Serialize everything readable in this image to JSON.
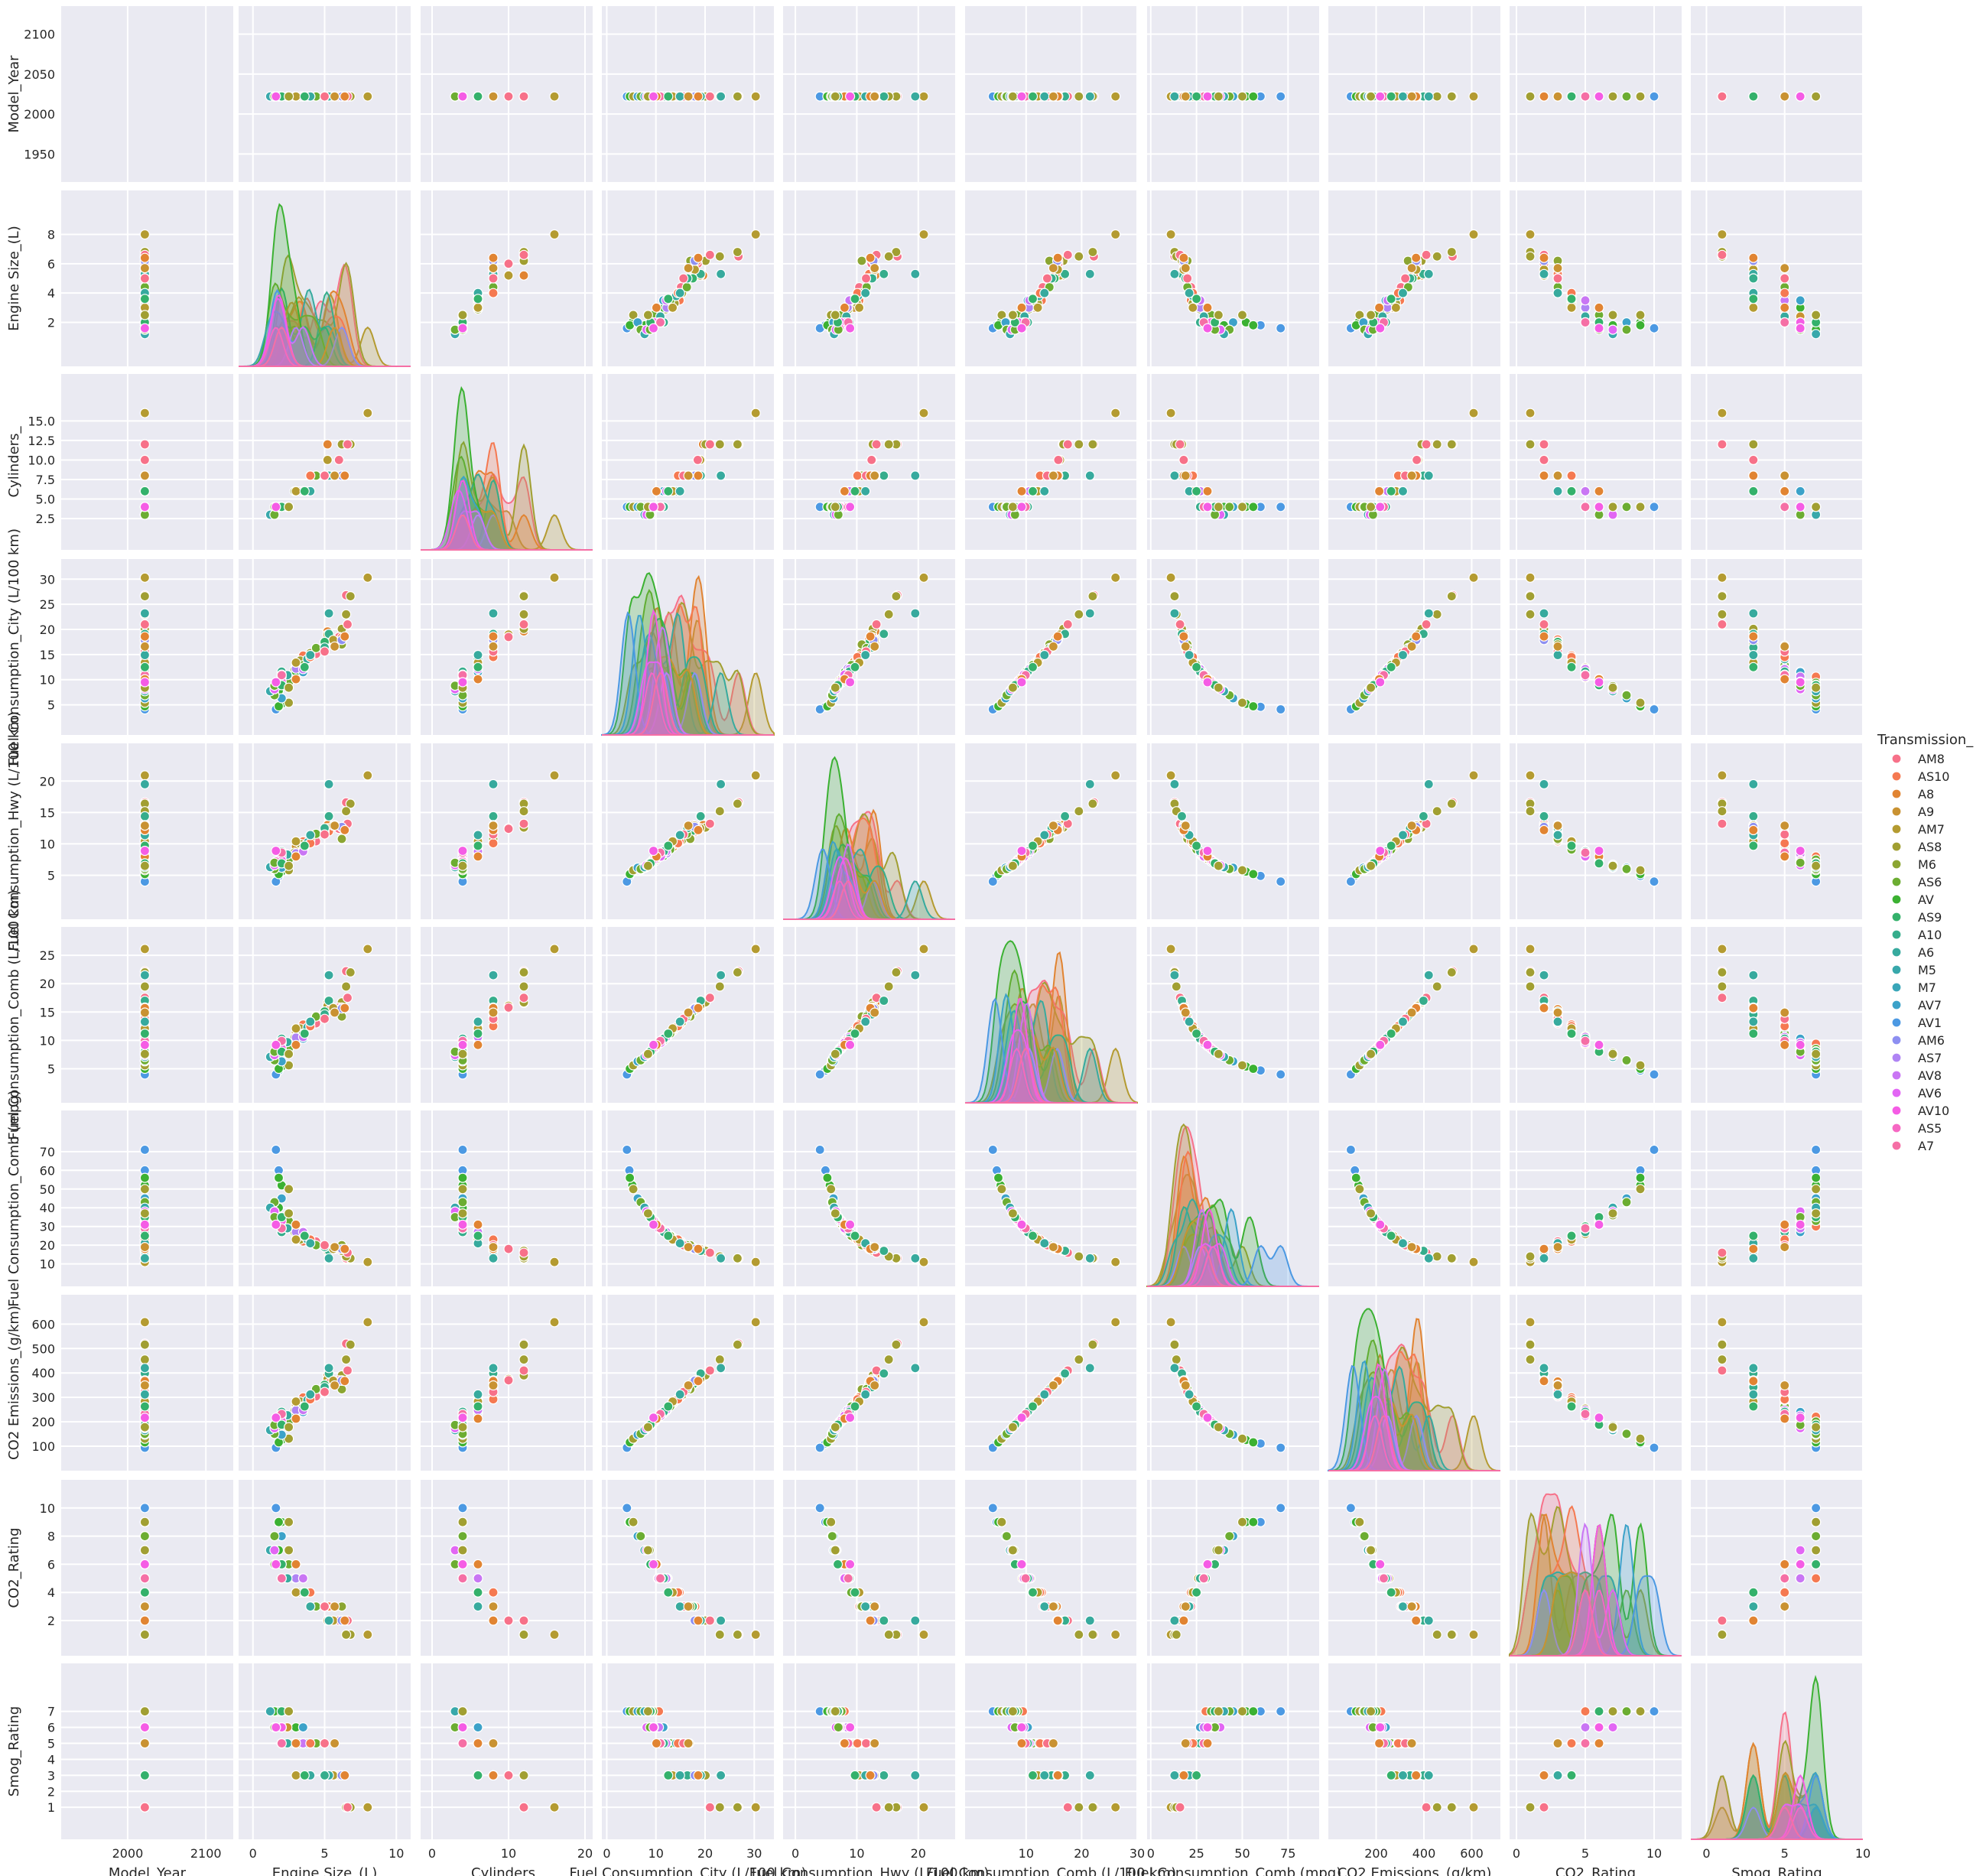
{
  "chart_data": {
    "type": "scatter",
    "variables": [
      {
        "name": "Model_Year",
        "lim": [
          1915,
          2135
        ],
        "ticks": [
          "2000",
          "2100"
        ],
        "yticks": [
          "1950",
          "2000",
          "2050",
          "2100"
        ]
      },
      {
        "name": "Engine Size_(L)",
        "lim": [
          -1,
          11
        ],
        "ticks": [
          "0",
          "5",
          "10"
        ],
        "yticks": [
          "2",
          "4",
          "6",
          "8"
        ]
      },
      {
        "name": "Cylinders_",
        "lim": [
          -1.5,
          21
        ],
        "ticks": [
          "0",
          "10",
          "20"
        ],
        "yticks": [
          "2.5",
          "5.0",
          "7.5",
          "10.0",
          "12.5",
          "15.0"
        ]
      },
      {
        "name": "Fuel Consumption_City (L/100 km)",
        "lim": [
          -1,
          34
        ],
        "ticks": [
          "0",
          "10",
          "20",
          "30"
        ],
        "yticks": [
          "5",
          "10",
          "15",
          "20",
          "25",
          "30"
        ]
      },
      {
        "name": "Fuel Consumption_Hwy (L/100 km)",
        "lim": [
          -2,
          26
        ],
        "ticks": [
          "0",
          "10",
          "20"
        ],
        "yticks": [
          "5",
          "10",
          "15",
          "20"
        ]
      },
      {
        "name": "Fuel Consumption_Comb (L/100 km)",
        "lim": [
          -1,
          30
        ],
        "ticks": [
          "10",
          "20",
          "30"
        ],
        "yticks": [
          "5",
          "10",
          "15",
          "20",
          "25"
        ]
      },
      {
        "name": "Fuel Consumption_Comb (mpg)",
        "lim": [
          -2,
          92
        ],
        "ticks": [
          "0",
          "25",
          "50",
          "75"
        ],
        "yticks": [
          "10",
          "20",
          "30",
          "40",
          "50",
          "60",
          "70"
        ]
      },
      {
        "name": "CO2 Emissions_(g/km)",
        "lim": [
          0,
          720
        ],
        "ticks": [
          "200",
          "400",
          "600"
        ],
        "yticks": [
          "100",
          "200",
          "300",
          "400",
          "500",
          "600"
        ]
      },
      {
        "name": "CO2_Rating",
        "lim": [
          -0.5,
          12
        ],
        "ticks": [
          "0",
          "5",
          "10"
        ],
        "yticks": [
          "2",
          "4",
          "6",
          "8",
          "10"
        ]
      },
      {
        "name": "Smog_Rating",
        "lim": [
          -1,
          10
        ],
        "ticks": [
          "0",
          "5",
          "10"
        ],
        "yticks": [
          "1",
          "2",
          "3",
          "4",
          "5",
          "6",
          "7"
        ]
      }
    ],
    "grid": true,
    "diagonal": "kde",
    "legend": {
      "title": "Transmission_",
      "placement": "right",
      "entries": [
        {
          "label": "AM8",
          "color": "#f77189"
        },
        {
          "label": "AS10",
          "color": "#f57951"
        },
        {
          "label": "A8",
          "color": "#e18432"
        },
        {
          "label": "A9",
          "color": "#c99232"
        },
        {
          "label": "AM7",
          "color": "#b49b31"
        },
        {
          "label": "AS8",
          "color": "#a19f32"
        },
        {
          "label": "M6",
          "color": "#8ba532"
        },
        {
          "label": "AS6",
          "color": "#6cad32"
        },
        {
          "label": "AV",
          "color": "#3bb132"
        },
        {
          "label": "AS9",
          "color": "#34b16b"
        },
        {
          "label": "A10",
          "color": "#36ad8c"
        },
        {
          "label": "A6",
          "color": "#37aa9e"
        },
        {
          "label": "M5",
          "color": "#38a8ab"
        },
        {
          "label": "M7",
          "color": "#39a6b9"
        },
        {
          "label": "AV7",
          "color": "#3ca2c9"
        },
        {
          "label": "AV1",
          "color": "#4c99e3"
        },
        {
          "label": "AM6",
          "color": "#8d8ff1"
        },
        {
          "label": "AS7",
          "color": "#af84f4"
        },
        {
          "label": "AV8",
          "color": "#c976f4"
        },
        {
          "label": "AV6",
          "color": "#e266f4"
        },
        {
          "label": "AV10",
          "color": "#f55ce5"
        },
        {
          "label": "AS5",
          "color": "#f668c3"
        },
        {
          "label": "A7",
          "color": "#f56fa5"
        }
      ]
    },
    "points": {
      "columns": [
        "Model_Year",
        "Engine Size_(L)",
        "Cylinders_",
        "Fuel Consumption_City (L/100 km)",
        "Fuel Consumption_Hwy (L/100 km)",
        "Fuel Consumption_Comb (L/100 km)",
        "Fuel Consumption_Comb (mpg)",
        "CO2 Emissions_(g/km)",
        "CO2_Rating",
        "Smog_Rating",
        "Transmission_"
      ],
      "rows": [
        [
          2022,
          8.0,
          16,
          30.3,
          20.9,
          26.1,
          11,
          608,
          1,
          1,
          "AM7"
        ],
        [
          2022,
          6.5,
          12,
          26.8,
          16.6,
          22.2,
          13,
          520,
          1,
          1,
          "AM8"
        ],
        [
          2022,
          6.8,
          12,
          26.6,
          16.4,
          22.0,
          13,
          516,
          1,
          1,
          "AS8"
        ],
        [
          2022,
          6.5,
          12,
          23.0,
          15.2,
          19.5,
          14,
          455,
          1,
          1,
          "AS8"
        ],
        [
          2022,
          5.2,
          12,
          19.6,
          13.0,
          16.6,
          17,
          390,
          2,
          3,
          "A8"
        ],
        [
          2022,
          6.2,
          12,
          20.1,
          12.6,
          16.7,
          17,
          390,
          2,
          3,
          "AS8"
        ],
        [
          2022,
          6.6,
          12,
          21.0,
          13.2,
          17.5,
          16,
          410,
          2,
          1,
          "AM8"
        ],
        [
          2022,
          5.2,
          10,
          19.0,
          12.5,
          16.1,
          18,
          375,
          2,
          3,
          "AM7"
        ],
        [
          2022,
          6.0,
          10,
          18.5,
          12.4,
          15.8,
          18,
          370,
          2,
          3,
          "AM8"
        ],
        [
          2022,
          5.3,
          8,
          18.0,
          12.0,
          15.3,
          18,
          358,
          3,
          3,
          "AS10"
        ],
        [
          2022,
          5.3,
          8,
          19.1,
          14.4,
          17.0,
          17,
          398,
          2,
          3,
          "A10"
        ],
        [
          2022,
          6.2,
          8,
          18.4,
          12.6,
          15.8,
          18,
          370,
          2,
          3,
          "AS10"
        ],
        [
          2022,
          5.7,
          8,
          17.6,
          13.0,
          15.5,
          18,
          365,
          3,
          3,
          "A8"
        ],
        [
          2022,
          5.6,
          8,
          17.9,
          12.9,
          15.7,
          18,
          368,
          2,
          3,
          "AM7"
        ],
        [
          2022,
          5.0,
          8,
          16.8,
          11.8,
          14.6,
          19,
          340,
          3,
          5,
          "AS8"
        ],
        [
          2022,
          4.4,
          8,
          15.1,
          10.4,
          13.0,
          22,
          304,
          3,
          5,
          "AM8"
        ],
        [
          2022,
          4.0,
          8,
          15.3,
          10.6,
          13.2,
          21,
          308,
          3,
          5,
          "AS8"
        ],
        [
          2022,
          5.3,
          8,
          23.2,
          19.5,
          21.5,
          13,
          420,
          2,
          3,
          "A6"
        ],
        [
          2022,
          5.0,
          8,
          17.5,
          12.1,
          15.1,
          19,
          352,
          3,
          3,
          "AS9"
        ],
        [
          2022,
          6.2,
          8,
          17.0,
          10.8,
          14.2,
          20,
          333,
          3,
          3,
          "M6"
        ],
        [
          2022,
          4.4,
          8,
          16.3,
          11.6,
          14.2,
          20,
          334,
          3,
          5,
          "AS6"
        ],
        [
          2022,
          5.0,
          8,
          16.4,
          12.5,
          14.6,
          19,
          342,
          3,
          3,
          "A10"
        ],
        [
          2022,
          6.2,
          8,
          17.9,
          12.7,
          15.6,
          18,
          368,
          2,
          3,
          "AM6"
        ],
        [
          2022,
          3.5,
          6,
          14.8,
          10.4,
          12.8,
          22,
          300,
          4,
          5,
          "AS10"
        ],
        [
          2022,
          3.0,
          6,
          12.7,
          9.2,
          11.1,
          25,
          262,
          4,
          5,
          "AM8"
        ],
        [
          2022,
          3.6,
          6,
          13.5,
          9.5,
          11.7,
          24,
          275,
          4,
          5,
          "A8"
        ],
        [
          2022,
          3.0,
          6,
          13.1,
          9.6,
          11.5,
          25,
          271,
          4,
          5,
          "A9"
        ],
        [
          2022,
          3.5,
          6,
          12.4,
          8.9,
          10.8,
          26,
          254,
          5,
          5,
          "AM7"
        ],
        [
          2022,
          3.3,
          6,
          13.8,
          10.0,
          12.1,
          23,
          283,
          4,
          5,
          "AS8"
        ],
        [
          2022,
          2.9,
          6,
          12.0,
          8.6,
          10.5,
          27,
          246,
          5,
          5,
          "M6"
        ],
        [
          2022,
          3.5,
          6,
          12.9,
          9.1,
          11.2,
          25,
          263,
          4,
          5,
          "AS6"
        ],
        [
          2022,
          3.0,
          6,
          11.6,
          8.1,
          10.0,
          28,
          235,
          5,
          6,
          "AV"
        ],
        [
          2022,
          3.8,
          6,
          14.1,
          10.2,
          12.3,
          23,
          289,
          4,
          5,
          "A6"
        ],
        [
          2022,
          3.5,
          6,
          11.5,
          8.8,
          10.3,
          27,
          240,
          5,
          6,
          "AV7"
        ],
        [
          2022,
          3.0,
          6,
          12.2,
          8.5,
          10.5,
          27,
          247,
          5,
          5,
          "AS7"
        ],
        [
          2022,
          3.5,
          6,
          12.1,
          8.8,
          10.6,
          27,
          248,
          5,
          5,
          "AV8"
        ],
        [
          2022,
          2.5,
          4,
          10.0,
          7.5,
          8.9,
          32,
          208,
          6,
          7,
          "AV"
        ],
        [
          2022,
          2.0,
          4,
          10.6,
          8.0,
          9.4,
          30,
          221,
          5,
          7,
          "AS10"
        ],
        [
          2022,
          2.0,
          4,
          11.3,
          8.3,
          10.0,
          28,
          234,
          5,
          5,
          "AM8"
        ],
        [
          2022,
          2.0,
          4,
          10.1,
          7.7,
          9.0,
          31,
          211,
          6,
          6,
          "A8"
        ],
        [
          2022,
          2.4,
          4,
          10.4,
          7.9,
          9.3,
          30,
          218,
          5,
          6,
          "A9"
        ],
        [
          2022,
          2.0,
          4,
          9.8,
          7.2,
          8.6,
          33,
          201,
          6,
          6,
          "AM7"
        ],
        [
          2022,
          2.0,
          4,
          10.2,
          7.6,
          9.0,
          31,
          212,
          6,
          6,
          "AS8"
        ],
        [
          2022,
          1.6,
          4,
          8.7,
          6.7,
          7.8,
          36,
          183,
          7,
          7,
          "M6"
        ],
        [
          2022,
          2.5,
          4,
          9.4,
          7.5,
          8.5,
          33,
          201,
          6,
          7,
          "AS6"
        ],
        [
          2022,
          1.8,
          4,
          7.8,
          6.2,
          7.1,
          40,
          165,
          7,
          7,
          "AV"
        ],
        [
          2022,
          2.0,
          4,
          10.7,
          7.9,
          9.5,
          30,
          221,
          5,
          5,
          "AS9"
        ],
        [
          2022,
          2.0,
          4,
          11.6,
          8.8,
          10.3,
          27,
          241,
          5,
          5,
          "A10"
        ],
        [
          2022,
          2.4,
          4,
          10.9,
          8.3,
          9.7,
          29,
          227,
          5,
          5,
          "A6"
        ],
        [
          2022,
          2.0,
          4,
          9.5,
          7.2,
          8.5,
          33,
          199,
          6,
          6,
          "M5"
        ],
        [
          2022,
          1.6,
          4,
          9.0,
          7.0,
          8.1,
          35,
          188,
          6,
          7,
          "M7"
        ],
        [
          2022,
          1.5,
          4,
          7.0,
          5.9,
          6.5,
          43,
          152,
          8,
          7,
          "AV7"
        ],
        [
          2022,
          1.8,
          4,
          4.6,
          4.9,
          4.7,
          60,
          111,
          9,
          7,
          "AV1"
        ],
        [
          2022,
          1.6,
          4,
          4.1,
          4.0,
          4.0,
          71,
          94,
          10,
          7,
          "AV1"
        ],
        [
          2022,
          2.0,
          4,
          5.2,
          5.6,
          5.4,
          52,
          126,
          9,
          7,
          "AV"
        ],
        [
          2022,
          1.8,
          4,
          4.7,
          5.2,
          5.0,
          56,
          116,
          9,
          7,
          "AV"
        ],
        [
          2022,
          2.5,
          4,
          5.4,
          5.8,
          5.6,
          50,
          131,
          9,
          7,
          "AS8"
        ],
        [
          2022,
          2.0,
          4,
          6.3,
          6.2,
          6.3,
          45,
          147,
          8,
          7,
          "AV7"
        ],
        [
          2022,
          1.5,
          4,
          6.9,
          6.0,
          6.5,
          43,
          151,
          8,
          7,
          "AS6"
        ],
        [
          2022,
          2.0,
          4,
          10.6,
          8.4,
          9.6,
          29,
          225,
          5,
          6,
          "AV8"
        ],
        [
          2022,
          2.0,
          4,
          11.0,
          8.0,
          9.6,
          29,
          225,
          5,
          5,
          "AV6"
        ],
        [
          2022,
          2.0,
          4,
          9.6,
          7.4,
          8.6,
          33,
          203,
          6,
          6,
          "AV10"
        ],
        [
          2022,
          1.6,
          4,
          9.2,
          7.2,
          8.3,
          34,
          195,
          6,
          6,
          "AS5"
        ],
        [
          2022,
          2.0,
          4,
          10.9,
          8.6,
          9.9,
          29,
          232,
          5,
          5,
          "A7"
        ],
        [
          2022,
          1.5,
          3,
          8.3,
          6.6,
          7.5,
          38,
          176,
          7,
          7,
          "AV"
        ],
        [
          2022,
          1.2,
          3,
          7.7,
          6.3,
          7.1,
          40,
          166,
          7,
          7,
          "M5"
        ],
        [
          2022,
          1.5,
          3,
          8.1,
          6.6,
          7.4,
          38,
          174,
          7,
          6,
          "AV6"
        ],
        [
          2022,
          1.5,
          3,
          8.8,
          7.0,
          8.0,
          35,
          187,
          6,
          6,
          "AS6"
        ],
        [
          2022,
          3.0,
          6,
          10.1,
          8.0,
          9.2,
          31,
          213,
          6,
          5,
          "A8"
        ],
        [
          2022,
          4.0,
          8,
          14.5,
          10.1,
          12.5,
          23,
          292,
          4,
          5,
          "AS10"
        ],
        [
          2022,
          5.0,
          8,
          15.6,
          11.5,
          13.8,
          20,
          322,
          3,
          5,
          "AM8"
        ],
        [
          2022,
          3.0,
          6,
          13.4,
          10.4,
          12.1,
          23,
          283,
          4,
          3,
          "AM7"
        ],
        [
          2022,
          4.0,
          6,
          14.9,
          11.4,
          13.3,
          21,
          312,
          3,
          3,
          "A6"
        ],
        [
          2022,
          6.4,
          8,
          18.6,
          12.2,
          15.7,
          18,
          367,
          2,
          3,
          "A8"
        ],
        [
          2022,
          5.7,
          8,
          16.6,
          12.9,
          14.9,
          19,
          349,
          3,
          5,
          "A9"
        ],
        [
          2022,
          2.0,
          4,
          8.9,
          6.9,
          8.0,
          35,
          188,
          6,
          7,
          "AS9"
        ],
        [
          2022,
          2.5,
          4,
          8.4,
          6.5,
          7.6,
          37,
          178,
          7,
          7,
          "AS8"
        ],
        [
          2022,
          3.6,
          6,
          12.5,
          9.7,
          11.2,
          25,
          263,
          4,
          3,
          "AS9"
        ],
        [
          2022,
          1.6,
          4,
          9.5,
          8.9,
          9.2,
          31,
          217,
          6,
          6,
          "AV10"
        ]
      ]
    }
  }
}
